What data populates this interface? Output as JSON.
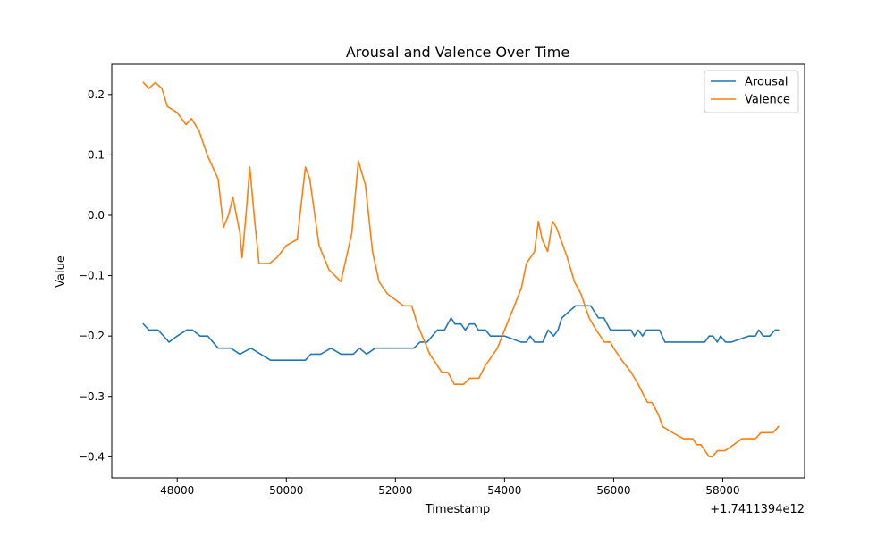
{
  "chart_data": {
    "type": "line",
    "title": "Arousal and Valence Over Time",
    "xlabel": "Timestamp",
    "ylabel": "Value",
    "x_offset_label": "+1.7411394e12",
    "xlim": [
      46800,
      59500
    ],
    "ylim": [
      -0.435,
      0.25
    ],
    "xticks": [
      48000,
      50000,
      52000,
      54000,
      56000,
      58000
    ],
    "yticks": [
      -0.4,
      -0.3,
      -0.2,
      -0.1,
      0.0,
      0.1,
      0.2
    ],
    "xtick_labels": [
      "48000",
      "50000",
      "52000",
      "54000",
      "56000",
      "58000"
    ],
    "ytick_labels": [
      "−0.4",
      "−0.3",
      "−0.2",
      "−0.1",
      "0.0",
      "0.1",
      "0.2"
    ],
    "legend_position": "top-right",
    "grid": false,
    "series": [
      {
        "name": "Arousal",
        "color": "#1f77b4",
        "points": [
          [
            47380,
            -0.18
          ],
          [
            47480,
            -0.19
          ],
          [
            47650,
            -0.19
          ],
          [
            47850,
            -0.21
          ],
          [
            48000,
            -0.2
          ],
          [
            48170,
            -0.19
          ],
          [
            48280,
            -0.19
          ],
          [
            48420,
            -0.2
          ],
          [
            48560,
            -0.2
          ],
          [
            48750,
            -0.22
          ],
          [
            48980,
            -0.22
          ],
          [
            49150,
            -0.23
          ],
          [
            49350,
            -0.22
          ],
          [
            49530,
            -0.23
          ],
          [
            49710,
            -0.24
          ],
          [
            50000,
            -0.24
          ],
          [
            50350,
            -0.24
          ],
          [
            50450,
            -0.23
          ],
          [
            50630,
            -0.23
          ],
          [
            50820,
            -0.22
          ],
          [
            51000,
            -0.23
          ],
          [
            51230,
            -0.23
          ],
          [
            51340,
            -0.22
          ],
          [
            51470,
            -0.23
          ],
          [
            51630,
            -0.22
          ],
          [
            52000,
            -0.22
          ],
          [
            52340,
            -0.22
          ],
          [
            52450,
            -0.21
          ],
          [
            52580,
            -0.21
          ],
          [
            52770,
            -0.19
          ],
          [
            52900,
            -0.19
          ],
          [
            53020,
            -0.17
          ],
          [
            53090,
            -0.18
          ],
          [
            53200,
            -0.18
          ],
          [
            53280,
            -0.19
          ],
          [
            53360,
            -0.18
          ],
          [
            53450,
            -0.18
          ],
          [
            53520,
            -0.19
          ],
          [
            53650,
            -0.19
          ],
          [
            53740,
            -0.2
          ],
          [
            53900,
            -0.2
          ],
          [
            54000,
            -0.2
          ],
          [
            54300,
            -0.21
          ],
          [
            54400,
            -0.21
          ],
          [
            54470,
            -0.2
          ],
          [
            54550,
            -0.21
          ],
          [
            54700,
            -0.21
          ],
          [
            54800,
            -0.19
          ],
          [
            54900,
            -0.2
          ],
          [
            54980,
            -0.19
          ],
          [
            55050,
            -0.17
          ],
          [
            55300,
            -0.15
          ],
          [
            55580,
            -0.15
          ],
          [
            55720,
            -0.17
          ],
          [
            55820,
            -0.17
          ],
          [
            55940,
            -0.19
          ],
          [
            56320,
            -0.19
          ],
          [
            56380,
            -0.2
          ],
          [
            56450,
            -0.19
          ],
          [
            56530,
            -0.2
          ],
          [
            56600,
            -0.19
          ],
          [
            56840,
            -0.19
          ],
          [
            56940,
            -0.21
          ],
          [
            57670,
            -0.21
          ],
          [
            57750,
            -0.2
          ],
          [
            57820,
            -0.2
          ],
          [
            57900,
            -0.21
          ],
          [
            57960,
            -0.2
          ],
          [
            58050,
            -0.21
          ],
          [
            58160,
            -0.21
          ],
          [
            58480,
            -0.2
          ],
          [
            58600,
            -0.2
          ],
          [
            58660,
            -0.19
          ],
          [
            58740,
            -0.2
          ],
          [
            58860,
            -0.2
          ],
          [
            58960,
            -0.19
          ],
          [
            59020,
            -0.19
          ]
        ]
      },
      {
        "name": "Valence",
        "color": "#ff7f0e",
        "points": [
          [
            47380,
            0.22
          ],
          [
            47480,
            0.21
          ],
          [
            47600,
            0.22
          ],
          [
            47720,
            0.21
          ],
          [
            47820,
            0.18
          ],
          [
            48000,
            0.17
          ],
          [
            48160,
            0.15
          ],
          [
            48260,
            0.16
          ],
          [
            48400,
            0.14
          ],
          [
            48550,
            0.1
          ],
          [
            48750,
            0.06
          ],
          [
            48850,
            -0.02
          ],
          [
            48940,
            0.0
          ],
          [
            49020,
            0.03
          ],
          [
            49150,
            -0.03
          ],
          [
            49190,
            -0.07
          ],
          [
            49260,
            0.0
          ],
          [
            49330,
            0.08
          ],
          [
            49410,
            0.0
          ],
          [
            49500,
            -0.08
          ],
          [
            49690,
            -0.08
          ],
          [
            49830,
            -0.07
          ],
          [
            50000,
            -0.05
          ],
          [
            50200,
            -0.04
          ],
          [
            50350,
            0.08
          ],
          [
            50430,
            0.06
          ],
          [
            50600,
            -0.05
          ],
          [
            50780,
            -0.09
          ],
          [
            51000,
            -0.11
          ],
          [
            51200,
            -0.03
          ],
          [
            51320,
            0.09
          ],
          [
            51450,
            0.05
          ],
          [
            51580,
            -0.06
          ],
          [
            51700,
            -0.11
          ],
          [
            51850,
            -0.13
          ],
          [
            52000,
            -0.14
          ],
          [
            52150,
            -0.15
          ],
          [
            52300,
            -0.15
          ],
          [
            52400,
            -0.18
          ],
          [
            52630,
            -0.23
          ],
          [
            52850,
            -0.26
          ],
          [
            52960,
            -0.26
          ],
          [
            53080,
            -0.28
          ],
          [
            53250,
            -0.28
          ],
          [
            53360,
            -0.27
          ],
          [
            53530,
            -0.27
          ],
          [
            53640,
            -0.25
          ],
          [
            53870,
            -0.22
          ],
          [
            54000,
            -0.19
          ],
          [
            54180,
            -0.15
          ],
          [
            54310,
            -0.12
          ],
          [
            54400,
            -0.08
          ],
          [
            54550,
            -0.06
          ],
          [
            54620,
            -0.01
          ],
          [
            54690,
            -0.04
          ],
          [
            54790,
            -0.06
          ],
          [
            54880,
            -0.01
          ],
          [
            54950,
            -0.02
          ],
          [
            55030,
            -0.04
          ],
          [
            55150,
            -0.07
          ],
          [
            55280,
            -0.11
          ],
          [
            55400,
            -0.13
          ],
          [
            55550,
            -0.17
          ],
          [
            55680,
            -0.19
          ],
          [
            55830,
            -0.21
          ],
          [
            55940,
            -0.21
          ],
          [
            56000,
            -0.22
          ],
          [
            56150,
            -0.24
          ],
          [
            56320,
            -0.26
          ],
          [
            56450,
            -0.28
          ],
          [
            56620,
            -0.31
          ],
          [
            56700,
            -0.31
          ],
          [
            56820,
            -0.33
          ],
          [
            56900,
            -0.35
          ],
          [
            57080,
            -0.36
          ],
          [
            57280,
            -0.37
          ],
          [
            57450,
            -0.37
          ],
          [
            57520,
            -0.38
          ],
          [
            57600,
            -0.38
          ],
          [
            57750,
            -0.4
          ],
          [
            57810,
            -0.4
          ],
          [
            57900,
            -0.39
          ],
          [
            58040,
            -0.39
          ],
          [
            58200,
            -0.38
          ],
          [
            58350,
            -0.37
          ],
          [
            58600,
            -0.37
          ],
          [
            58700,
            -0.36
          ],
          [
            58920,
            -0.36
          ],
          [
            59020,
            -0.35
          ]
        ]
      }
    ]
  }
}
